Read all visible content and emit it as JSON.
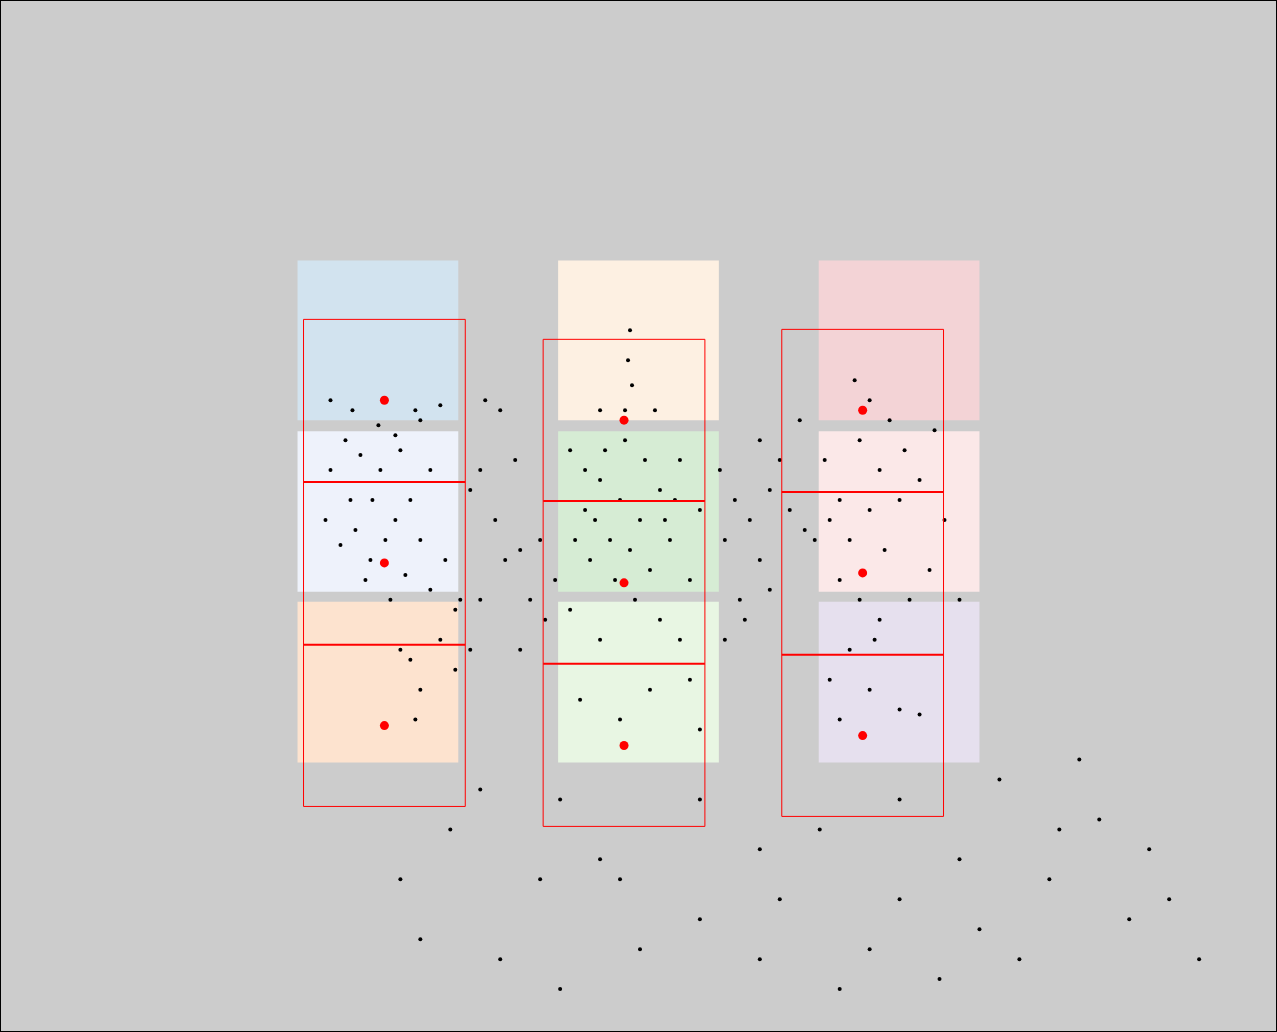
{
  "chart_data": {
    "type": "scatter",
    "xlim": [
      0,
      1277
    ],
    "ylim": [
      1032,
      0
    ],
    "tick_labels": false,
    "grid": false,
    "background": "#cccccc",
    "panels": [
      {
        "x0": 297,
        "x1": 458,
        "y0": 260,
        "y1": 420,
        "color": "#d2e3ef"
      },
      {
        "x0": 297,
        "x1": 458,
        "y0": 431,
        "y1": 592,
        "color": "#eef2fb"
      },
      {
        "x0": 297,
        "x1": 458,
        "y0": 602,
        "y1": 763,
        "color": "#fde3cf"
      },
      {
        "x0": 558,
        "x1": 719,
        "y0": 260,
        "y1": 420,
        "color": "#fdf0e2"
      },
      {
        "x0": 558,
        "x1": 719,
        "y0": 431,
        "y1": 592,
        "color": "#d6ecd4"
      },
      {
        "x0": 558,
        "x1": 719,
        "y0": 602,
        "y1": 763,
        "color": "#e8f6e3"
      },
      {
        "x0": 819,
        "x1": 980,
        "y0": 260,
        "y1": 420,
        "color": "#f3d3d6"
      },
      {
        "x0": 819,
        "x1": 980,
        "y0": 431,
        "y1": 592,
        "color": "#fbe8e8"
      },
      {
        "x0": 819,
        "x1": 980,
        "y0": 602,
        "y1": 763,
        "color": "#e6e0ee"
      }
    ],
    "boxes": [
      {
        "x0": 303,
        "x1": 465,
        "y0": 319,
        "y1": 807,
        "dividers": [
          482,
          645
        ],
        "color": "#ff0000"
      },
      {
        "x0": 543,
        "x1": 705,
        "y0": 339,
        "y1": 827,
        "dividers": [
          501,
          664
        ],
        "color": "#ff0000"
      },
      {
        "x0": 782,
        "x1": 944,
        "y0": 329,
        "y1": 817,
        "dividers": [
          492,
          655
        ],
        "color": "#ff0000"
      }
    ],
    "centers": {
      "color": "#ff0000",
      "x": [
        384,
        384,
        384,
        624,
        624,
        624,
        863,
        863,
        863
      ],
      "y": [
        400,
        563,
        726,
        420,
        583,
        746,
        410,
        573,
        736
      ]
    },
    "points": {
      "color": "#000000",
      "xy": [
        [
          352,
          410
        ],
        [
          345,
          440
        ],
        [
          360,
          455
        ],
        [
          380,
          470
        ],
        [
          372,
          500
        ],
        [
          395,
          520
        ],
        [
          355,
          530
        ],
        [
          340,
          545
        ],
        [
          410,
          500
        ],
        [
          420,
          540
        ],
        [
          365,
          580
        ],
        [
          390,
          600
        ],
        [
          430,
          470
        ],
        [
          415,
          410
        ],
        [
          440,
          405
        ],
        [
          330,
          470
        ],
        [
          325,
          520
        ],
        [
          400,
          450
        ],
        [
          385,
          540
        ],
        [
          350,
          500
        ],
        [
          405,
          575
        ],
        [
          430,
          590
        ],
        [
          445,
          560
        ],
        [
          378,
          425
        ],
        [
          395,
          435
        ],
        [
          410,
          660
        ],
        [
          420,
          690
        ],
        [
          455,
          670
        ],
        [
          415,
          720
        ],
        [
          400,
          650
        ],
        [
          440,
          640
        ],
        [
          455,
          610
        ],
        [
          330,
          400
        ],
        [
          420,
          420
        ],
        [
          370,
          560
        ],
        [
          470,
          490
        ],
        [
          480,
          470
        ],
        [
          495,
          520
        ],
        [
          505,
          560
        ],
        [
          520,
          550
        ],
        [
          530,
          600
        ],
        [
          480,
          600
        ],
        [
          460,
          600
        ],
        [
          500,
          410
        ],
        [
          515,
          460
        ],
        [
          540,
          540
        ],
        [
          485,
          400
        ],
        [
          470,
          650
        ],
        [
          520,
          650
        ],
        [
          545,
          620
        ],
        [
          570,
          450
        ],
        [
          585,
          470
        ],
        [
          600,
          480
        ],
        [
          620,
          500
        ],
        [
          640,
          520
        ],
        [
          660,
          490
        ],
        [
          680,
          460
        ],
        [
          700,
          510
        ],
        [
          575,
          540
        ],
        [
          590,
          560
        ],
        [
          610,
          540
        ],
        [
          630,
          550
        ],
        [
          650,
          570
        ],
        [
          670,
          540
        ],
        [
          690,
          580
        ],
        [
          605,
          450
        ],
        [
          625,
          440
        ],
        [
          645,
          460
        ],
        [
          665,
          520
        ],
        [
          585,
          510
        ],
        [
          615,
          580
        ],
        [
          635,
          600
        ],
        [
          660,
          620
        ],
        [
          680,
          640
        ],
        [
          600,
          640
        ],
        [
          690,
          680
        ],
        [
          650,
          690
        ],
        [
          620,
          720
        ],
        [
          580,
          700
        ],
        [
          700,
          730
        ],
        [
          570,
          610
        ],
        [
          630,
          330
        ],
        [
          628,
          360
        ],
        [
          632,
          385
        ],
        [
          625,
          410
        ],
        [
          600,
          410
        ],
        [
          655,
          410
        ],
        [
          595,
          520
        ],
        [
          675,
          500
        ],
        [
          555,
          580
        ],
        [
          720,
          470
        ],
        [
          735,
          500
        ],
        [
          750,
          520
        ],
        [
          770,
          490
        ],
        [
          760,
          560
        ],
        [
          740,
          600
        ],
        [
          725,
          640
        ],
        [
          790,
          510
        ],
        [
          805,
          530
        ],
        [
          780,
          460
        ],
        [
          760,
          440
        ],
        [
          745,
          620
        ],
        [
          770,
          590
        ],
        [
          800,
          420
        ],
        [
          725,
          540
        ],
        [
          855,
          380
        ],
        [
          870,
          400
        ],
        [
          890,
          420
        ],
        [
          860,
          440
        ],
        [
          880,
          470
        ],
        [
          840,
          500
        ],
        [
          830,
          520
        ],
        [
          850,
          540
        ],
        [
          870,
          510
        ],
        [
          900,
          500
        ],
        [
          920,
          480
        ],
        [
          885,
          550
        ],
        [
          840,
          580
        ],
        [
          860,
          600
        ],
        [
          880,
          620
        ],
        [
          910,
          600
        ],
        [
          930,
          570
        ],
        [
          945,
          520
        ],
        [
          850,
          650
        ],
        [
          830,
          680
        ],
        [
          870,
          690
        ],
        [
          900,
          710
        ],
        [
          840,
          720
        ],
        [
          920,
          715
        ],
        [
          875,
          640
        ],
        [
          825,
          460
        ],
        [
          815,
          540
        ],
        [
          905,
          450
        ],
        [
          935,
          430
        ],
        [
          960,
          600
        ],
        [
          480,
          790
        ],
        [
          560,
          800
        ],
        [
          600,
          860
        ],
        [
          700,
          800
        ],
        [
          760,
          850
        ],
        [
          820,
          830
        ],
        [
          900,
          800
        ],
        [
          1000,
          780
        ],
        [
          1080,
          760
        ],
        [
          1100,
          820
        ],
        [
          1150,
          850
        ],
        [
          1200,
          960
        ],
        [
          1170,
          900
        ],
        [
          1050,
          880
        ],
        [
          980,
          930
        ],
        [
          940,
          980
        ],
        [
          840,
          990
        ],
        [
          760,
          960
        ],
        [
          700,
          920
        ],
        [
          640,
          950
        ],
        [
          560,
          990
        ],
        [
          500,
          960
        ],
        [
          420,
          940
        ],
        [
          400,
          880
        ],
        [
          450,
          830
        ],
        [
          1020,
          960
        ],
        [
          900,
          900
        ],
        [
          780,
          900
        ],
        [
          620,
          880
        ],
        [
          870,
          950
        ],
        [
          1130,
          920
        ],
        [
          1060,
          830
        ],
        [
          960,
          860
        ],
        [
          540,
          880
        ]
      ]
    }
  }
}
